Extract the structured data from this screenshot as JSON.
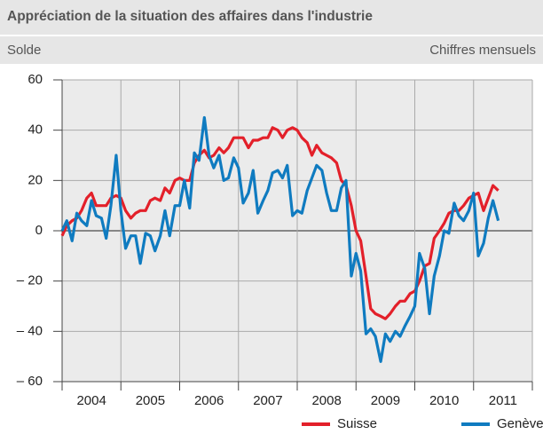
{
  "chart_data": {
    "type": "line",
    "title": "Appréciation de la situation des affaires dans l'industrie",
    "subtitle": "Solde",
    "note": "Chiffres mensuels",
    "categories": [
      "2004",
      "2005",
      "2006",
      "2007",
      "2008",
      "2009",
      "2010",
      "2011"
    ],
    "x": [
      2004.0,
      2004.08,
      2004.17,
      2004.25,
      2004.33,
      2004.42,
      2004.5,
      2004.58,
      2004.67,
      2004.75,
      2004.83,
      2004.92,
      2005.0,
      2005.08,
      2005.17,
      2005.25,
      2005.33,
      2005.42,
      2005.5,
      2005.58,
      2005.67,
      2005.75,
      2005.83,
      2005.92,
      2006.0,
      2006.08,
      2006.17,
      2006.25,
      2006.33,
      2006.42,
      2006.5,
      2006.58,
      2006.67,
      2006.75,
      2006.83,
      2006.92,
      2007.0,
      2007.08,
      2007.17,
      2007.25,
      2007.33,
      2007.42,
      2007.5,
      2007.58,
      2007.67,
      2007.75,
      2007.83,
      2007.92,
      2008.0,
      2008.08,
      2008.17,
      2008.25,
      2008.33,
      2008.42,
      2008.5,
      2008.58,
      2008.67,
      2008.75,
      2008.83,
      2008.92,
      2009.0,
      2009.08,
      2009.17,
      2009.25,
      2009.33,
      2009.42,
      2009.5,
      2009.58,
      2009.67,
      2009.75,
      2009.83,
      2009.92,
      2010.0,
      2010.08,
      2010.17,
      2010.25,
      2010.33,
      2010.42,
      2010.5,
      2010.58,
      2010.67,
      2010.75,
      2010.83,
      2010.92,
      2011.0,
      2011.08,
      2011.17,
      2011.25,
      2011.33,
      2011.42
    ],
    "series": [
      {
        "name": "Suisse",
        "color": "#e3202a",
        "values": [
          -2,
          2,
          4,
          5,
          8,
          13,
          15,
          10,
          10,
          10,
          13,
          14,
          13,
          8,
          5,
          7,
          8,
          8,
          12,
          13,
          12,
          17,
          15,
          20,
          21,
          20,
          20,
          27,
          30,
          32,
          29,
          30,
          33,
          31,
          33,
          37,
          37,
          37,
          33,
          36,
          36,
          37,
          37,
          41,
          40,
          37,
          40,
          41,
          40,
          37,
          35,
          30,
          34,
          31,
          30,
          29,
          27,
          20,
          18,
          10,
          0,
          -4,
          -18,
          -31,
          -33,
          -34,
          -35,
          -33,
          -30,
          -28,
          -28,
          -25,
          -24,
          -20,
          -14,
          -13,
          -3,
          0,
          3,
          7,
          8,
          8,
          10,
          13,
          14,
          15,
          8,
          13,
          18,
          16
        ]
      },
      {
        "name": "Genève",
        "color": "#0f7bc0",
        "values": [
          0,
          4,
          -4,
          7,
          4,
          2,
          12,
          6,
          5,
          -3,
          10,
          30,
          8,
          -7,
          -2,
          -2,
          -13,
          -1,
          -2,
          -8,
          -2,
          8,
          -2,
          10,
          10,
          20,
          9,
          31,
          28,
          45,
          30,
          25,
          30,
          20,
          21,
          29,
          25,
          11,
          15,
          24,
          7,
          12,
          16,
          23,
          24,
          21,
          26,
          6,
          8,
          7,
          16,
          21,
          26,
          24,
          15,
          8,
          8,
          17,
          20,
          -18,
          -9,
          -16,
          -41,
          -39,
          -42,
          -52,
          -41,
          -44,
          -40,
          -42,
          -38,
          -34,
          -30,
          -9,
          -15,
          -33,
          -18,
          -10,
          0,
          -1,
          11,
          6,
          4,
          8,
          15,
          -10,
          -5,
          5,
          12,
          4
        ]
      }
    ],
    "xlim": [
      2004,
      2012
    ],
    "xticks": [
      2004,
      2005,
      2006,
      2007,
      2008,
      2009,
      2010,
      2011,
      2012
    ],
    "ylim": [
      -60,
      60
    ],
    "yticks": [
      {
        "value": -60,
        "label": "– 60"
      },
      {
        "value": -40,
        "label": "– 40"
      },
      {
        "value": -20,
        "label": "– 20"
      },
      0,
      20,
      40,
      60
    ],
    "grid": true,
    "legend": "bottom-right"
  }
}
